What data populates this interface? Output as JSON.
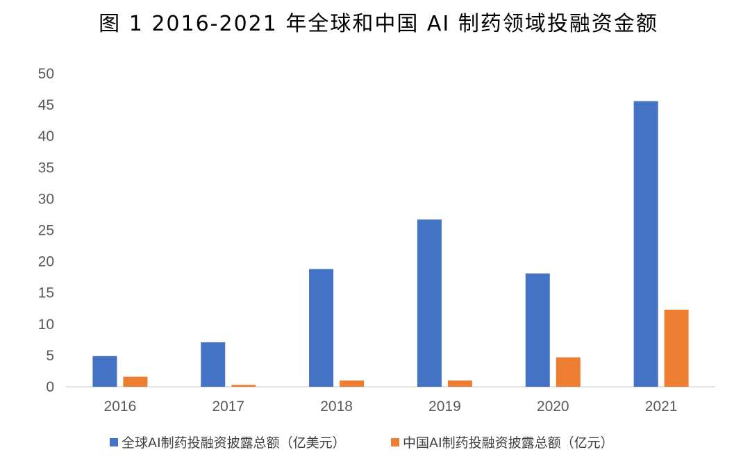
{
  "chart_data": {
    "type": "bar",
    "title": "图 1 2016-2021 年全球和中国 AI 制药领域投融资金额",
    "categories": [
      "2016",
      "2017",
      "2018",
      "2019",
      "2020",
      "2021"
    ],
    "series": [
      {
        "name": "全球AI制药投融资披露总额（亿美元）",
        "color": "#4472C4",
        "values": [
          4.9,
          7.1,
          18.8,
          26.7,
          18.1,
          45.6
        ]
      },
      {
        "name": "中国AI制药投融资披露总额（亿元）",
        "color": "#ED7D31",
        "values": [
          1.6,
          0.3,
          1.0,
          1.0,
          4.7,
          12.3
        ]
      }
    ],
    "ylim": [
      0,
      50
    ],
    "yticks": [
      "0",
      "5",
      "10",
      "15",
      "20",
      "25",
      "30",
      "35",
      "40",
      "45",
      "50"
    ],
    "grid": false,
    "legend_position": "bottom",
    "xlabel": "",
    "ylabel": ""
  }
}
